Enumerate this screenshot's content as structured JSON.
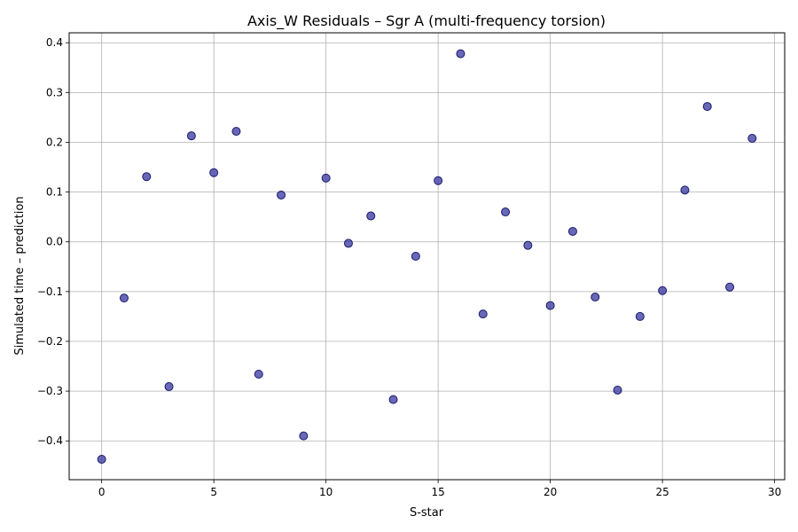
{
  "chart_data": {
    "type": "scatter",
    "title": "Axis_W Residuals – Sgr A (multi-frequency torsion)",
    "xlabel": "S-star",
    "ylabel": "Simulated time – prediction",
    "xlim": [
      -1.45,
      30.45
    ],
    "ylim": [
      -0.478,
      0.42
    ],
    "xticks": [
      0,
      5,
      10,
      15,
      20,
      25,
      30
    ],
    "yticks": [
      -0.4,
      -0.3,
      -0.2,
      -0.1,
      0.0,
      0.1,
      0.2,
      0.3,
      0.4
    ],
    "ytick_labels": [
      "−0.4",
      "−0.3",
      "−0.2",
      "−0.1",
      "0.0",
      "0.1",
      "0.2",
      "0.3",
      "0.4"
    ],
    "grid": true,
    "marker_color": "#2e2e9a",
    "marker_edge": "#1a1a6e",
    "x": [
      0,
      1,
      2,
      3,
      4,
      5,
      6,
      7,
      8,
      9,
      10,
      11,
      12,
      13,
      14,
      15,
      16,
      17,
      18,
      19,
      20,
      21,
      22,
      23,
      24,
      25,
      26,
      27,
      28,
      29
    ],
    "y": [
      -0.437,
      -0.113,
      0.131,
      -0.291,
      0.213,
      0.139,
      0.222,
      -0.266,
      0.094,
      -0.39,
      0.128,
      -0.003,
      0.052,
      -0.317,
      -0.029,
      0.123,
      0.378,
      -0.145,
      0.06,
      -0.007,
      -0.128,
      0.021,
      -0.111,
      -0.298,
      -0.15,
      -0.098,
      0.104,
      0.272,
      -0.091,
      0.208
    ]
  }
}
